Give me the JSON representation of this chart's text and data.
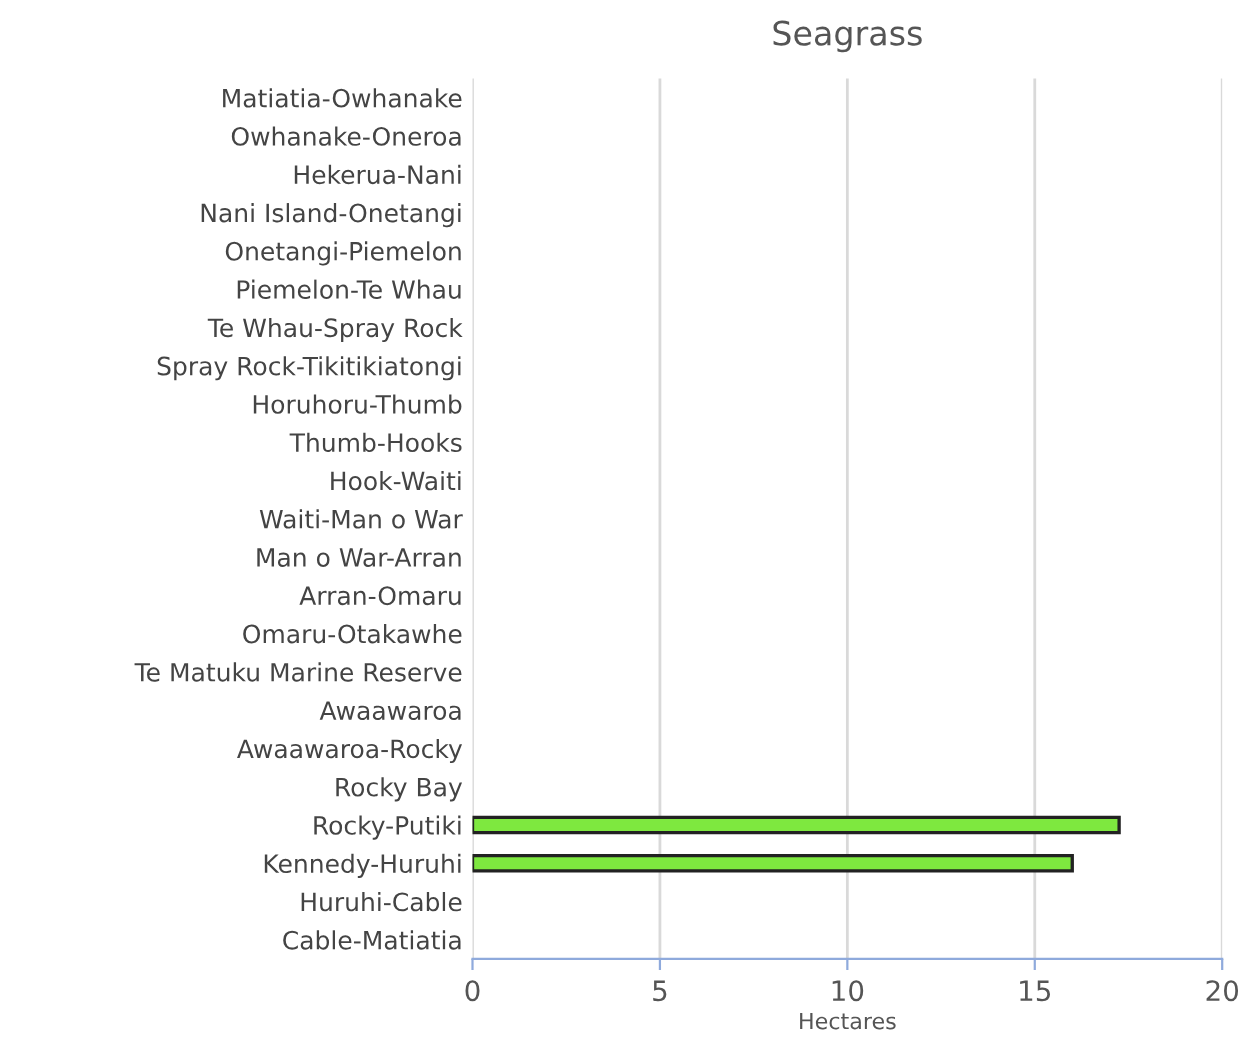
{
  "chart_data": {
    "type": "bar",
    "orientation": "horizontal",
    "title": "Seagrass",
    "xlabel": "Hectares",
    "categories": [
      "Matiatia-Owhanake",
      "Owhanake-Oneroa",
      "Hekerua-Nani",
      "Nani Island-Onetangi",
      "Onetangi-Piemelon",
      "Piemelon-Te Whau",
      "Te Whau-Spray Rock",
      "Spray Rock-Tikitikiatongi",
      "Horuhoru-Thumb",
      "Thumb-Hooks",
      "Hook-Waiti",
      "Waiti-Man o War",
      "Man o War-Arran",
      "Arran-Omaru",
      "Omaru-Otakawhe",
      "Te Matuku Marine Reserve",
      "Awaawaroa",
      "Awaawaroa-Rocky",
      "Rocky Bay",
      "Rocky-Putiki",
      "Kennedy-Huruhi",
      "Huruhi-Cable",
      "Cable-Matiatia"
    ],
    "values": [
      null,
      null,
      null,
      null,
      null,
      null,
      null,
      null,
      null,
      null,
      null,
      null,
      null,
      null,
      null,
      null,
      null,
      null,
      null,
      17.25,
      16.0,
      null,
      null
    ],
    "color": "#7ee83f",
    "xlim": [
      0,
      20
    ],
    "xticks": [
      0,
      5,
      10,
      15,
      20
    ],
    "grid": "x"
  }
}
